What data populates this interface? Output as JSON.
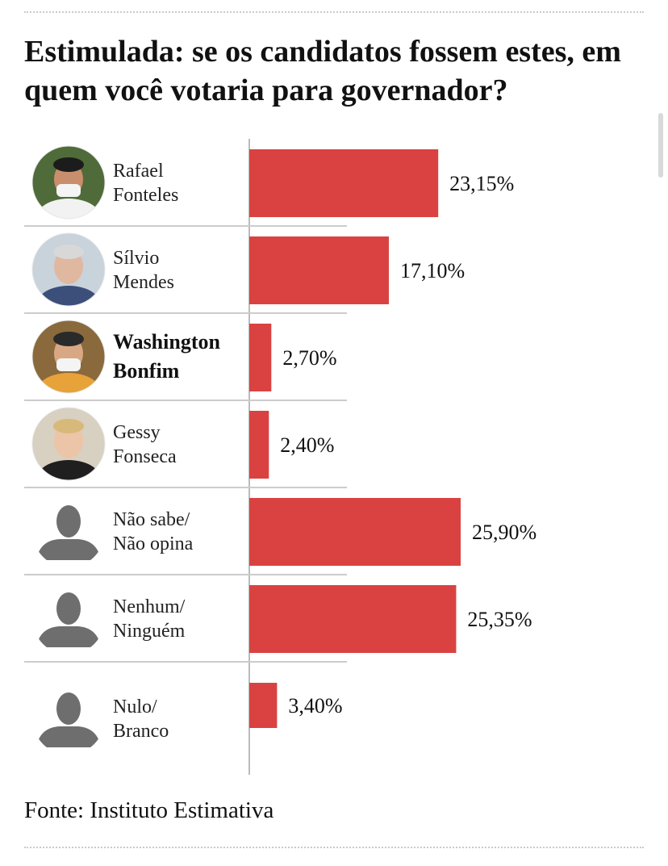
{
  "title": "Estimulada: se os candidatos fossem estes, em quem você votaria para governador?",
  "source": "Fonte: Instituto Estimativa",
  "colors": {
    "bar": "#d94241",
    "avatar_placeholder": "#6e6e6e"
  },
  "chart_data": {
    "type": "bar",
    "orientation": "horizontal",
    "title": "Estimulada: se os candidatos fossem estes, em quem você votaria para governador?",
    "categories": [
      [
        "Rafael",
        "Fonteles"
      ],
      [
        "Sílvio",
        "Mendes"
      ],
      [
        "Washington",
        "Bonfim"
      ],
      [
        "Gessy",
        "Fonseca"
      ],
      [
        "Não sabe/",
        "Não opina"
      ],
      [
        "Nenhum/",
        "Ninguém"
      ],
      [
        "Nulo/",
        "Branco"
      ]
    ],
    "values": [
      23.15,
      17.1,
      2.7,
      2.4,
      25.9,
      25.35,
      3.4
    ],
    "value_labels": [
      "23,15%",
      "17,10%",
      "2,70%",
      "2,40%",
      "25,90%",
      "25,35%",
      "3,40%"
    ],
    "highlight": [
      false,
      false,
      true,
      false,
      false,
      false,
      false
    ],
    "avatars": [
      "photo",
      "photo",
      "photo",
      "photo",
      "placeholder",
      "placeholder",
      "placeholder"
    ],
    "xlim": [
      0,
      26
    ],
    "grid": false,
    "legend": "none"
  }
}
